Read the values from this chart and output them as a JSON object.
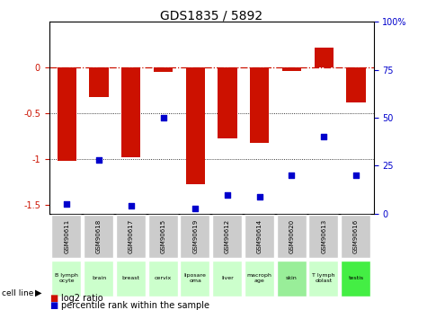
{
  "title": "GDS1835 / 5892",
  "samples": [
    "GSM90611",
    "GSM90618",
    "GSM90617",
    "GSM90615",
    "GSM90619",
    "GSM90612",
    "GSM90614",
    "GSM90620",
    "GSM90613",
    "GSM90616"
  ],
  "cell_lines": [
    "B lymph\nocyte",
    "brain",
    "breast",
    "cervix",
    "liposare\noma",
    "liver",
    "macroph\nage",
    "skin",
    "T lymph\noblast",
    "testis"
  ],
  "cell_line_colors": [
    "#ccffcc",
    "#ccffcc",
    "#ccffcc",
    "#ccffcc",
    "#ccffcc",
    "#ccffcc",
    "#ccffcc",
    "#99ee99",
    "#ccffcc",
    "#44ee44"
  ],
  "log2_ratio": [
    -1.02,
    -0.32,
    -0.98,
    -0.05,
    -1.28,
    -0.78,
    -0.82,
    -0.04,
    0.22,
    -0.38
  ],
  "percentile_rank": [
    5,
    28,
    4,
    50,
    3,
    10,
    9,
    20,
    40,
    20
  ],
  "ylim_left": [
    -1.6,
    0.5
  ],
  "ylim_right": [
    0,
    100
  ],
  "bar_color": "#cc1100",
  "dot_color": "#0000cc",
  "ref_line_color": "#cc1100",
  "bg_color": "#ffffff",
  "label_bg_color": "#cccccc",
  "title_fontsize": 10,
  "tick_fontsize": 7,
  "legend_fontsize": 7
}
